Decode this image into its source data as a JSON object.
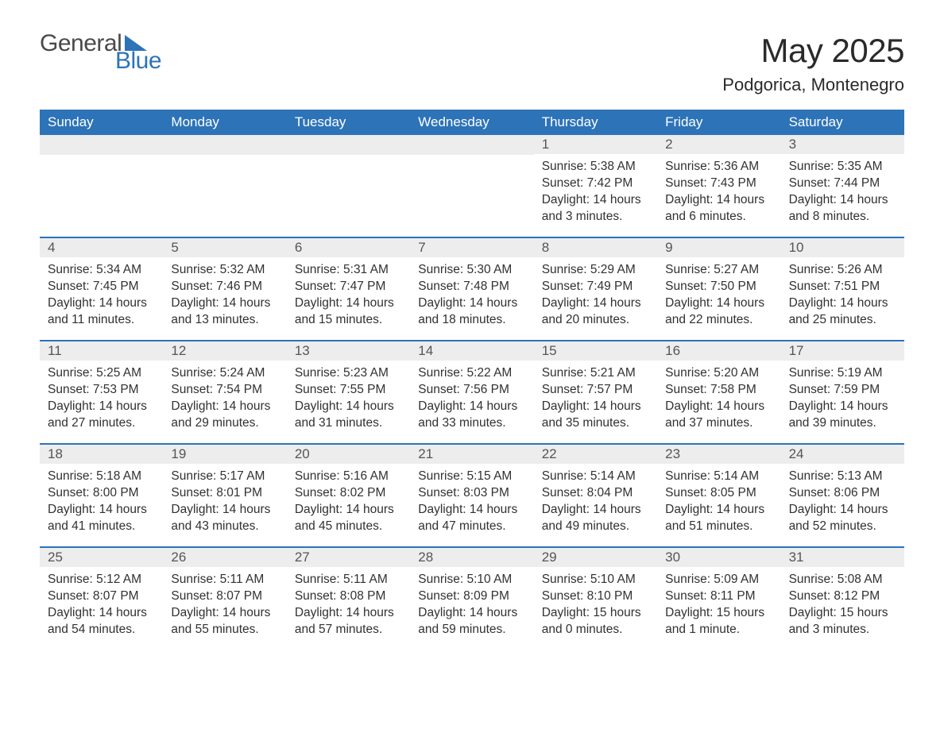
{
  "logo": {
    "word1": "General",
    "word2": "Blue"
  },
  "title": "May 2025",
  "subtitle": "Podgorica, Montenegro",
  "colors": {
    "header_bg": "#2d73b8",
    "header_text": "#ffffff",
    "daynum_bg": "#ededed",
    "daynum_text": "#555555",
    "body_text": "#313131",
    "page_bg": "#ffffff",
    "row_divider": "#2d73b8"
  },
  "layout": {
    "columns": 7,
    "rows": 5,
    "first_weekday": "Sunday"
  },
  "weekdays": [
    "Sunday",
    "Monday",
    "Tuesday",
    "Wednesday",
    "Thursday",
    "Friday",
    "Saturday"
  ],
  "fonts": {
    "title_size_pt": 32,
    "subtitle_size_pt": 17,
    "weekday_size_pt": 13,
    "daynum_size_pt": 13,
    "body_size_pt": 12,
    "family": "Arial"
  },
  "weeks": [
    [
      {
        "n": "",
        "sunrise": "",
        "sunset": "",
        "daylight": ""
      },
      {
        "n": "",
        "sunrise": "",
        "sunset": "",
        "daylight": ""
      },
      {
        "n": "",
        "sunrise": "",
        "sunset": "",
        "daylight": ""
      },
      {
        "n": "",
        "sunrise": "",
        "sunset": "",
        "daylight": ""
      },
      {
        "n": "1",
        "sunrise": "Sunrise: 5:38 AM",
        "sunset": "Sunset: 7:42 PM",
        "daylight": "Daylight: 14 hours and 3 minutes."
      },
      {
        "n": "2",
        "sunrise": "Sunrise: 5:36 AM",
        "sunset": "Sunset: 7:43 PM",
        "daylight": "Daylight: 14 hours and 6 minutes."
      },
      {
        "n": "3",
        "sunrise": "Sunrise: 5:35 AM",
        "sunset": "Sunset: 7:44 PM",
        "daylight": "Daylight: 14 hours and 8 minutes."
      }
    ],
    [
      {
        "n": "4",
        "sunrise": "Sunrise: 5:34 AM",
        "sunset": "Sunset: 7:45 PM",
        "daylight": "Daylight: 14 hours and 11 minutes."
      },
      {
        "n": "5",
        "sunrise": "Sunrise: 5:32 AM",
        "sunset": "Sunset: 7:46 PM",
        "daylight": "Daylight: 14 hours and 13 minutes."
      },
      {
        "n": "6",
        "sunrise": "Sunrise: 5:31 AM",
        "sunset": "Sunset: 7:47 PM",
        "daylight": "Daylight: 14 hours and 15 minutes."
      },
      {
        "n": "7",
        "sunrise": "Sunrise: 5:30 AM",
        "sunset": "Sunset: 7:48 PM",
        "daylight": "Daylight: 14 hours and 18 minutes."
      },
      {
        "n": "8",
        "sunrise": "Sunrise: 5:29 AM",
        "sunset": "Sunset: 7:49 PM",
        "daylight": "Daylight: 14 hours and 20 minutes."
      },
      {
        "n": "9",
        "sunrise": "Sunrise: 5:27 AM",
        "sunset": "Sunset: 7:50 PM",
        "daylight": "Daylight: 14 hours and 22 minutes."
      },
      {
        "n": "10",
        "sunrise": "Sunrise: 5:26 AM",
        "sunset": "Sunset: 7:51 PM",
        "daylight": "Daylight: 14 hours and 25 minutes."
      }
    ],
    [
      {
        "n": "11",
        "sunrise": "Sunrise: 5:25 AM",
        "sunset": "Sunset: 7:53 PM",
        "daylight": "Daylight: 14 hours and 27 minutes."
      },
      {
        "n": "12",
        "sunrise": "Sunrise: 5:24 AM",
        "sunset": "Sunset: 7:54 PM",
        "daylight": "Daylight: 14 hours and 29 minutes."
      },
      {
        "n": "13",
        "sunrise": "Sunrise: 5:23 AM",
        "sunset": "Sunset: 7:55 PM",
        "daylight": "Daylight: 14 hours and 31 minutes."
      },
      {
        "n": "14",
        "sunrise": "Sunrise: 5:22 AM",
        "sunset": "Sunset: 7:56 PM",
        "daylight": "Daylight: 14 hours and 33 minutes."
      },
      {
        "n": "15",
        "sunrise": "Sunrise: 5:21 AM",
        "sunset": "Sunset: 7:57 PM",
        "daylight": "Daylight: 14 hours and 35 minutes."
      },
      {
        "n": "16",
        "sunrise": "Sunrise: 5:20 AM",
        "sunset": "Sunset: 7:58 PM",
        "daylight": "Daylight: 14 hours and 37 minutes."
      },
      {
        "n": "17",
        "sunrise": "Sunrise: 5:19 AM",
        "sunset": "Sunset: 7:59 PM",
        "daylight": "Daylight: 14 hours and 39 minutes."
      }
    ],
    [
      {
        "n": "18",
        "sunrise": "Sunrise: 5:18 AM",
        "sunset": "Sunset: 8:00 PM",
        "daylight": "Daylight: 14 hours and 41 minutes."
      },
      {
        "n": "19",
        "sunrise": "Sunrise: 5:17 AM",
        "sunset": "Sunset: 8:01 PM",
        "daylight": "Daylight: 14 hours and 43 minutes."
      },
      {
        "n": "20",
        "sunrise": "Sunrise: 5:16 AM",
        "sunset": "Sunset: 8:02 PM",
        "daylight": "Daylight: 14 hours and 45 minutes."
      },
      {
        "n": "21",
        "sunrise": "Sunrise: 5:15 AM",
        "sunset": "Sunset: 8:03 PM",
        "daylight": "Daylight: 14 hours and 47 minutes."
      },
      {
        "n": "22",
        "sunrise": "Sunrise: 5:14 AM",
        "sunset": "Sunset: 8:04 PM",
        "daylight": "Daylight: 14 hours and 49 minutes."
      },
      {
        "n": "23",
        "sunrise": "Sunrise: 5:14 AM",
        "sunset": "Sunset: 8:05 PM",
        "daylight": "Daylight: 14 hours and 51 minutes."
      },
      {
        "n": "24",
        "sunrise": "Sunrise: 5:13 AM",
        "sunset": "Sunset: 8:06 PM",
        "daylight": "Daylight: 14 hours and 52 minutes."
      }
    ],
    [
      {
        "n": "25",
        "sunrise": "Sunrise: 5:12 AM",
        "sunset": "Sunset: 8:07 PM",
        "daylight": "Daylight: 14 hours and 54 minutes."
      },
      {
        "n": "26",
        "sunrise": "Sunrise: 5:11 AM",
        "sunset": "Sunset: 8:07 PM",
        "daylight": "Daylight: 14 hours and 55 minutes."
      },
      {
        "n": "27",
        "sunrise": "Sunrise: 5:11 AM",
        "sunset": "Sunset: 8:08 PM",
        "daylight": "Daylight: 14 hours and 57 minutes."
      },
      {
        "n": "28",
        "sunrise": "Sunrise: 5:10 AM",
        "sunset": "Sunset: 8:09 PM",
        "daylight": "Daylight: 14 hours and 59 minutes."
      },
      {
        "n": "29",
        "sunrise": "Sunrise: 5:10 AM",
        "sunset": "Sunset: 8:10 PM",
        "daylight": "Daylight: 15 hours and 0 minutes."
      },
      {
        "n": "30",
        "sunrise": "Sunrise: 5:09 AM",
        "sunset": "Sunset: 8:11 PM",
        "daylight": "Daylight: 15 hours and 1 minute."
      },
      {
        "n": "31",
        "sunrise": "Sunrise: 5:08 AM",
        "sunset": "Sunset: 8:12 PM",
        "daylight": "Daylight: 15 hours and 3 minutes."
      }
    ]
  ]
}
